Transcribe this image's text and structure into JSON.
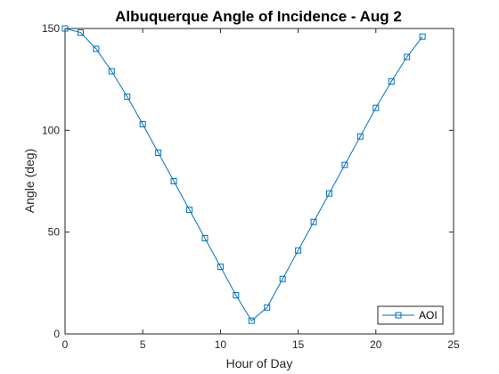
{
  "chart_data": {
    "type": "line",
    "title": "Albuquerque Angle of Incidence - Aug 2",
    "xlabel": "Hour of Day",
    "ylabel": "Angle (deg)",
    "xlim": [
      0,
      25
    ],
    "ylim": [
      0,
      150
    ],
    "xticks": [
      0,
      5,
      10,
      15,
      20,
      25
    ],
    "yticks": [
      0,
      50,
      100,
      150
    ],
    "grid": false,
    "legend_position": "bottom-right",
    "series": [
      {
        "name": "AOI",
        "color": "#0072BD",
        "marker": "square",
        "x": [
          0,
          1,
          2,
          3,
          4,
          5,
          6,
          7,
          8,
          9,
          10,
          11,
          12,
          13,
          14,
          15,
          16,
          17,
          18,
          19,
          20,
          21,
          22,
          23
        ],
        "y": [
          150,
          148,
          140,
          129,
          116.5,
          103,
          89,
          75,
          61,
          47,
          33,
          19,
          6.5,
          13,
          27,
          41,
          55,
          69,
          83,
          97,
          111,
          124,
          136,
          146
        ]
      }
    ]
  }
}
